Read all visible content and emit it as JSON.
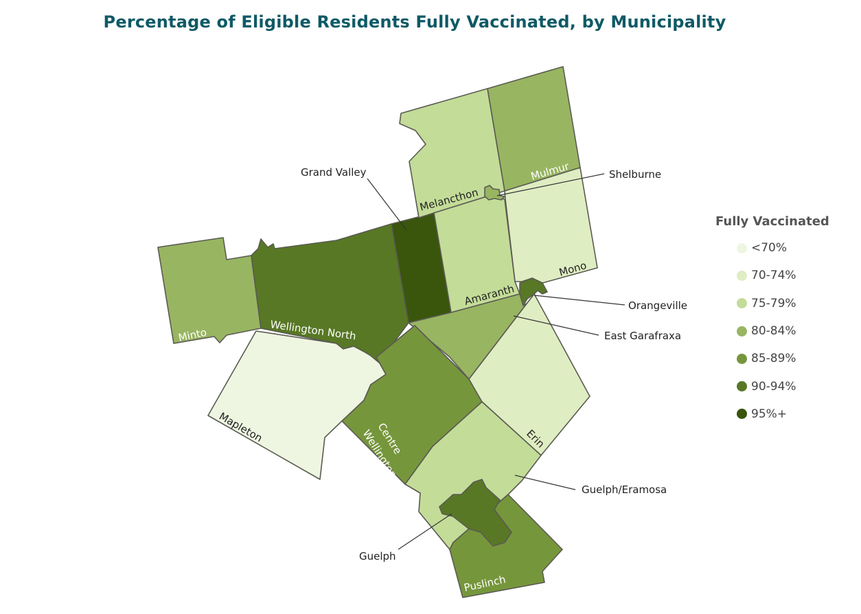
{
  "title": "Percentage of Eligible Residents Fully Vaccinated, by Municipality",
  "legend": {
    "title": "Fully Vaccinated",
    "bins": [
      {
        "label": "<70%",
        "color": "#eef6e1"
      },
      {
        "label": "70-74%",
        "color": "#dfedc2"
      },
      {
        "label": "75-79%",
        "color": "#c3dc98"
      },
      {
        "label": "80-84%",
        "color": "#98b562"
      },
      {
        "label": "85-89%",
        "color": "#76963c"
      },
      {
        "label": "90-94%",
        "color": "#587825"
      },
      {
        "label": "95%+",
        "color": "#39560c"
      }
    ]
  },
  "municipalities": [
    {
      "name": "Mapleton",
      "bin": "<70%"
    },
    {
      "name": "Minto",
      "bin": "80-84%"
    },
    {
      "name": "Wellington North",
      "bin": "90-94%"
    },
    {
      "name": "Grand Valley",
      "bin": "95%+"
    },
    {
      "name": "Melancthon",
      "bin": "75-79%"
    },
    {
      "name": "Mulmur",
      "bin": "80-84%"
    },
    {
      "name": "Shelburne",
      "bin": "80-84%"
    },
    {
      "name": "Mono",
      "bin": "70-74%"
    },
    {
      "name": "Amaranth",
      "bin": "75-79%"
    },
    {
      "name": "Orangeville",
      "bin": "90-94%"
    },
    {
      "name": "East Garafraxa",
      "bin": "80-84%"
    },
    {
      "name": "Erin",
      "bin": "70-74%"
    },
    {
      "name": "Centre Wellington",
      "bin": "85-89%"
    },
    {
      "name": "Guelph/Eramosa",
      "bin": "75-79%"
    },
    {
      "name": "Puslinch",
      "bin": "85-89%"
    },
    {
      "name": "Guelph",
      "bin": "90-94%"
    }
  ],
  "labels": {
    "mapleton": "Mapleton",
    "minto": "Minto",
    "wellington_north": "Wellington North",
    "grand_valley": "Grand Valley",
    "melancthon": "Melancthon",
    "mulmur": "Mulmur",
    "shelburne": "Shelburne",
    "mono": "Mono",
    "amaranth": "Amaranth",
    "orangeville": "Orangeville",
    "east_garafraxa": "East Garafraxa",
    "erin": "Erin",
    "centre_wellington_1": "Centre",
    "centre_wellington_2": "Wellington",
    "guelph_eramosa": "Guelph/Eramosa",
    "puslinch": "Puslinch",
    "guelph": "Guelph"
  }
}
